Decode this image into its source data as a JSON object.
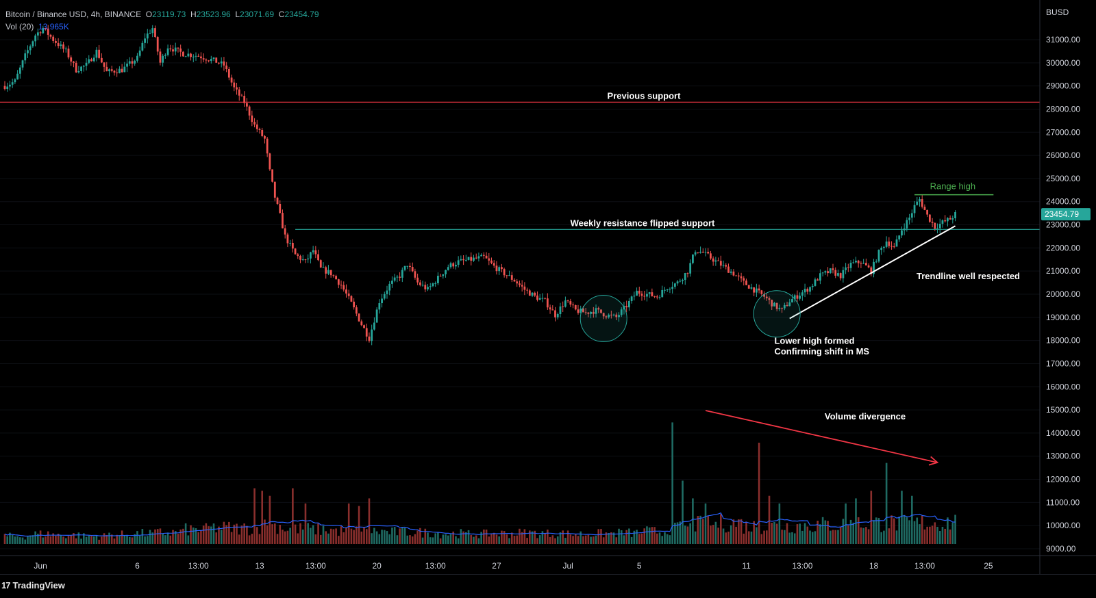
{
  "header": {
    "symbol": "Bitcoin / Binance USD, 4h, BINANCE",
    "open_label": "O",
    "open": "23119.73",
    "high_label": "H",
    "high": "23523.96",
    "low_label": "L",
    "low": "23071.69",
    "close_label": "C",
    "close": "23454.79",
    "volume_label": "Vol (20)",
    "volume_value": "13.965K"
  },
  "axis": {
    "currency": "BUSD",
    "current_price_label": "23454.79",
    "ymin": 8700,
    "ymax": 32000,
    "yticks": [
      9000,
      10000,
      11000,
      12000,
      13000,
      14000,
      15000,
      16000,
      17000,
      18000,
      19000,
      20000,
      21000,
      22000,
      23000,
      24000,
      25000,
      26000,
      27000,
      28000,
      29000,
      30000,
      31000
    ],
    "ytick_labels": [
      "9000.00",
      "10000.00",
      "11000.00",
      "12000.00",
      "13000.00",
      "14000.00",
      "15000.00",
      "16000.00",
      "17000.00",
      "18000.00",
      "19000.00",
      "20000.00",
      "21000.00",
      "22000.00",
      "23000.00",
      "24000.00",
      "25000.00",
      "26000.00",
      "27000.00",
      "28000.00",
      "29000.00",
      "30000.00",
      "31000.00"
    ],
    "xticks": [
      {
        "label": "Jun",
        "bar": 14
      },
      {
        "label": "6",
        "bar": 52
      },
      {
        "label": "13:00",
        "bar": 76
      },
      {
        "label": "13",
        "bar": 100
      },
      {
        "label": "13:00",
        "bar": 122
      },
      {
        "label": "20",
        "bar": 146
      },
      {
        "label": "13:00",
        "bar": 169
      },
      {
        "label": "27",
        "bar": 193
      },
      {
        "label": "Jul",
        "bar": 221
      },
      {
        "label": "5",
        "bar": 249
      },
      {
        "label": "11",
        "bar": 291
      },
      {
        "label": "13:00",
        "bar": 313
      },
      {
        "label": "18",
        "bar": 341
      },
      {
        "label": "13:00",
        "bar": 361
      },
      {
        "label": "25",
        "bar": 386
      }
    ]
  },
  "annotations": {
    "previous_support": "Previous support",
    "weekly_resistance": "Weekly resistance flipped support",
    "range_high": "Range high",
    "trendline": "Trendline well respected",
    "lower_high_1": "Lower high formed",
    "lower_high_2": "Confirming shift in MS",
    "volume_divergence": "Volume divergence"
  },
  "colors": {
    "up": "#26a69a",
    "down": "#ef5350",
    "vol_up": "#1f6b63",
    "vol_down": "#8a2f2d",
    "vol_ma": "#2962ff",
    "previous_support": "#f23645",
    "weekly_resistance": "#26a69a",
    "range_high": "#4caf50",
    "trendline": "#ffffff",
    "divergence_arrow": "#f23645"
  },
  "chart_data": {
    "type": "candlestick",
    "interval": "4h",
    "levels": {
      "previous_support": 28300,
      "weekly_resistance": 22800,
      "range_high": 24300
    },
    "trendline": [
      {
        "bar": 308,
        "price": 18950
      },
      {
        "bar": 373,
        "price": 22950
      }
    ],
    "circles": [
      {
        "bar": 235,
        "price": 18950
      },
      {
        "bar": 303,
        "price": 19150
      }
    ],
    "divergence_arrow": [
      {
        "bar": 275,
        "vol": 1.0
      },
      {
        "bar": 366,
        "vol": 0.8
      }
    ],
    "anchors": [
      [
        0,
        29000
      ],
      [
        4,
        29200
      ],
      [
        8,
        30300
      ],
      [
        12,
        31200
      ],
      [
        15,
        31500
      ],
      [
        19,
        31000
      ],
      [
        24,
        30500
      ],
      [
        28,
        29700
      ],
      [
        32,
        29900
      ],
      [
        36,
        30500
      ],
      [
        40,
        29600
      ],
      [
        46,
        29700
      ],
      [
        52,
        30200
      ],
      [
        55,
        31100
      ],
      [
        58,
        31500
      ],
      [
        61,
        30000
      ],
      [
        64,
        30700
      ],
      [
        70,
        30400
      ],
      [
        76,
        30300
      ],
      [
        82,
        30100
      ],
      [
        86,
        29900
      ],
      [
        90,
        28900
      ],
      [
        94,
        28300
      ],
      [
        98,
        27300
      ],
      [
        102,
        26700
      ],
      [
        104,
        25300
      ],
      [
        106,
        24200
      ],
      [
        108,
        23400
      ],
      [
        110,
        22500
      ],
      [
        112,
        22100
      ],
      [
        114,
        21700
      ],
      [
        118,
        21400
      ],
      [
        121,
        21900
      ],
      [
        124,
        21100
      ],
      [
        128,
        20900
      ],
      [
        132,
        20400
      ],
      [
        136,
        19600
      ],
      [
        140,
        18700
      ],
      [
        143,
        18100
      ],
      [
        147,
        19700
      ],
      [
        151,
        20400
      ],
      [
        155,
        20800
      ],
      [
        158,
        21300
      ],
      [
        162,
        20500
      ],
      [
        166,
        20200
      ],
      [
        170,
        20700
      ],
      [
        174,
        21200
      ],
      [
        178,
        21400
      ],
      [
        183,
        21500
      ],
      [
        188,
        21600
      ],
      [
        192,
        21200
      ],
      [
        196,
        20900
      ],
      [
        200,
        20600
      ],
      [
        204,
        20200
      ],
      [
        208,
        19900
      ],
      [
        212,
        19700
      ],
      [
        216,
        19100
      ],
      [
        220,
        19700
      ],
      [
        224,
        19300
      ],
      [
        228,
        19200
      ],
      [
        232,
        19300
      ],
      [
        236,
        19100
      ],
      [
        240,
        19000
      ],
      [
        244,
        19500
      ],
      [
        248,
        20100
      ],
      [
        252,
        20000
      ],
      [
        256,
        19900
      ],
      [
        260,
        20300
      ],
      [
        264,
        20500
      ],
      [
        268,
        21000
      ],
      [
        271,
        21900
      ],
      [
        274,
        21800
      ],
      [
        278,
        21500
      ],
      [
        282,
        21200
      ],
      [
        286,
        20900
      ],
      [
        290,
        20500
      ],
      [
        294,
        20200
      ],
      [
        298,
        19900
      ],
      [
        302,
        19500
      ],
      [
        305,
        19300
      ],
      [
        308,
        19700
      ],
      [
        312,
        20000
      ],
      [
        316,
        20300
      ],
      [
        320,
        20800
      ],
      [
        324,
        21000
      ],
      [
        328,
        20800
      ],
      [
        332,
        21300
      ],
      [
        336,
        21400
      ],
      [
        340,
        21000
      ],
      [
        343,
        21800
      ],
      [
        346,
        22300
      ],
      [
        349,
        22000
      ],
      [
        352,
        22800
      ],
      [
        355,
        23300
      ],
      [
        357,
        23800
      ],
      [
        359,
        24100
      ],
      [
        362,
        23400
      ],
      [
        365,
        22900
      ],
      [
        368,
        23100
      ],
      [
        371,
        23250
      ],
      [
        373,
        23454
      ]
    ],
    "volume": {
      "baseline": [
        0.3,
        0.38,
        0.34,
        0.3,
        0.36,
        0.4,
        0.44,
        0.55,
        0.62,
        0.6,
        0.7,
        0.58,
        0.55,
        0.5,
        0.48,
        0.46,
        0.44,
        0.4,
        0.38,
        0.4,
        0.42,
        0.4,
        0.38,
        0.4,
        0.42,
        0.48,
        0.62,
        0.75,
        0.8,
        0.68,
        0.7,
        0.72,
        0.74,
        0.78,
        0.8,
        0.78,
        0.82,
        0.84
      ],
      "spikes": [
        {
          "bar": 98,
          "vol": 2.2
        },
        {
          "bar": 101,
          "vol": 2.1
        },
        {
          "bar": 104,
          "vol": 1.9
        },
        {
          "bar": 113,
          "vol": 2.2
        },
        {
          "bar": 118,
          "vol": 1.6
        },
        {
          "bar": 135,
          "vol": 1.6
        },
        {
          "bar": 139,
          "vol": 1.5
        },
        {
          "bar": 143,
          "vol": 1.8
        },
        {
          "bar": 262,
          "vol": 4.8
        },
        {
          "bar": 266,
          "vol": 2.5
        },
        {
          "bar": 270,
          "vol": 1.8
        },
        {
          "bar": 275,
          "vol": 1.6
        },
        {
          "bar": 296,
          "vol": 4.0
        },
        {
          "bar": 300,
          "vol": 1.9
        },
        {
          "bar": 304,
          "vol": 1.6
        },
        {
          "bar": 330,
          "vol": 1.6
        },
        {
          "bar": 334,
          "vol": 1.8
        },
        {
          "bar": 340,
          "vol": 2.1
        },
        {
          "bar": 346,
          "vol": 3.2
        },
        {
          "bar": 352,
          "vol": 2.1
        },
        {
          "bar": 356,
          "vol": 1.9
        }
      ]
    }
  },
  "footer": {
    "logo": "17",
    "brand": "TradingView"
  }
}
